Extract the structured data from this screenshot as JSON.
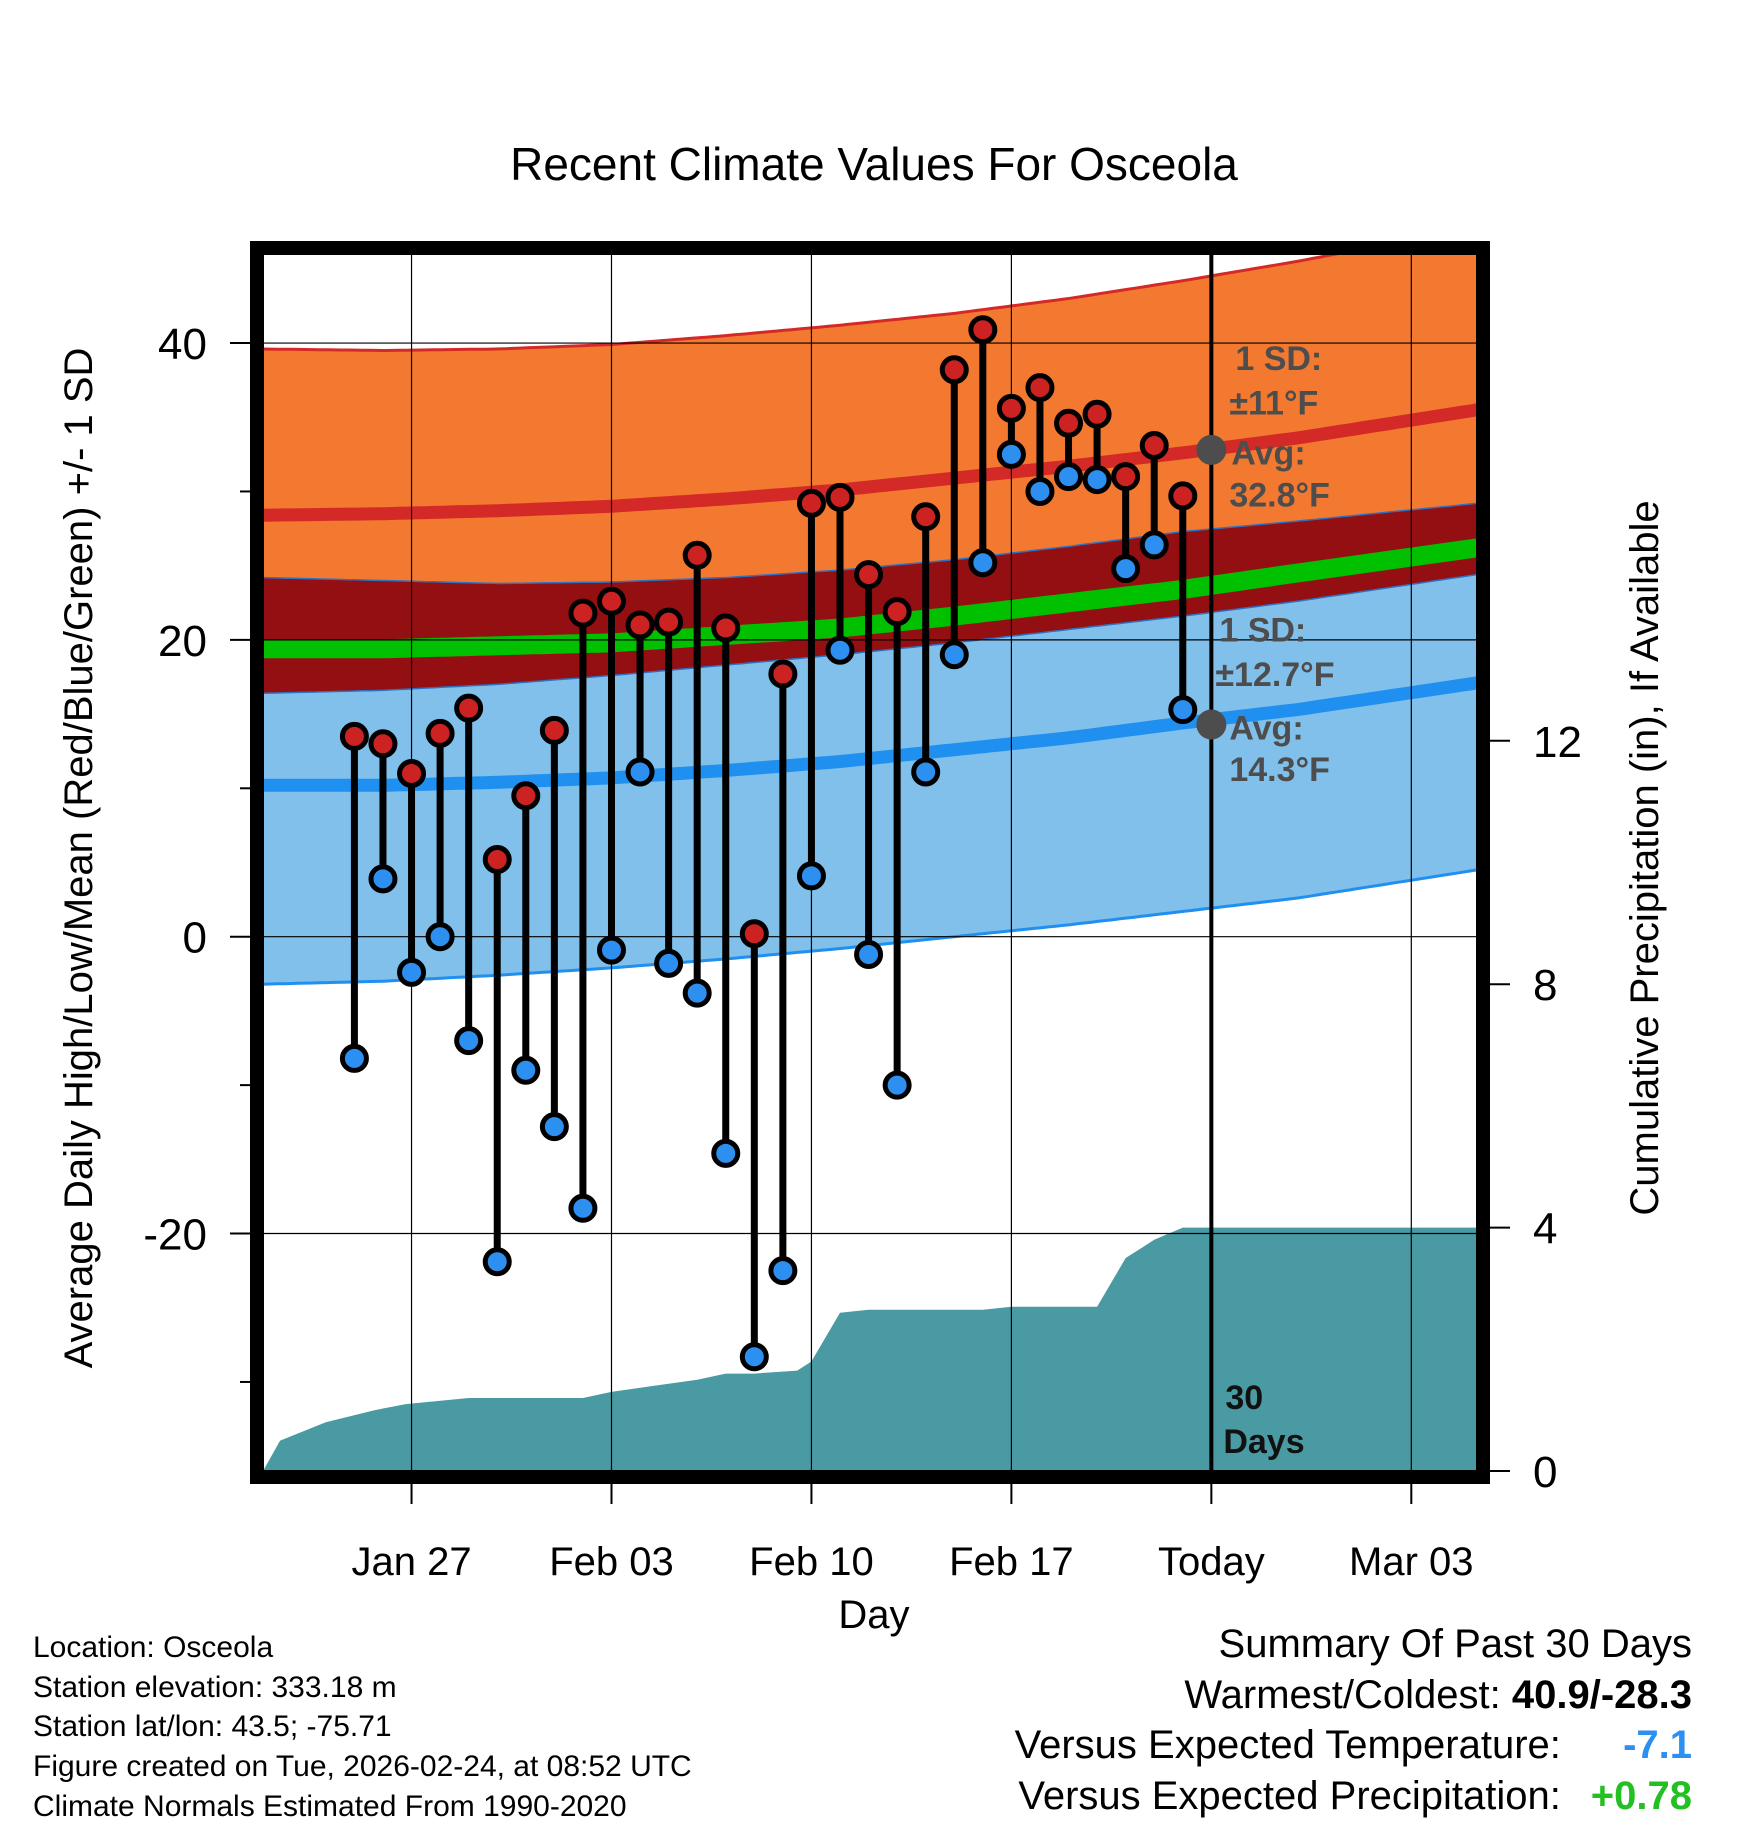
{
  "chart_data": {
    "type": "line",
    "title": "Recent Climate Values For Osceola",
    "xlabel": "Day",
    "ylabel_left": "Average Daily High/Low/Mean (Red/Blue/Green) +/- 1 SD",
    "ylabel_right": "Cumulative Precipitation (in), If Available",
    "ylim_left": [
      -36,
      46
    ],
    "yticks_left": [
      40,
      20,
      0,
      -20
    ],
    "yticks_left_minor": [
      30,
      10,
      -10,
      -30
    ],
    "ylim_right": [
      0,
      20
    ],
    "yticks_right": [
      12,
      8,
      4,
      0
    ],
    "xlim_days": [
      -33.2,
      9.3
    ],
    "x_tick_labels": [
      {
        "day": -28,
        "label": "Jan 27"
      },
      {
        "day": -21,
        "label": "Feb 03"
      },
      {
        "day": -14,
        "label": "Feb 10"
      },
      {
        "day": -7,
        "label": "Feb 17"
      },
      {
        "day": 0,
        "label": "Today"
      },
      {
        "day": 7,
        "label": "Mar 03"
      }
    ],
    "normal_curves": {
      "day": [
        -33.2,
        -29,
        -25,
        -21,
        -17,
        -13,
        -9,
        -5,
        -1,
        3,
        9.3
      ],
      "high_avg": [
        28.4,
        28.5,
        28.7,
        29.0,
        29.5,
        30.1,
        30.9,
        31.7,
        32.6,
        33.6,
        35.5
      ],
      "high_upper": [
        39.6,
        39.5,
        39.6,
        39.9,
        40.5,
        41.2,
        42.0,
        43.0,
        44.2,
        45.5,
        47.8
      ],
      "high_lower": [
        24.2,
        24.0,
        23.8,
        23.9,
        24.2,
        24.7,
        25.4,
        26.3,
        27.3,
        28.0,
        29.2
      ],
      "mean_avg": [
        19.4,
        19.4,
        19.6,
        19.8,
        20.3,
        20.8,
        21.6,
        22.5,
        23.4,
        24.5,
        26.2
      ],
      "low_avg": [
        10.2,
        10.2,
        10.4,
        10.7,
        11.2,
        11.8,
        12.6,
        13.4,
        14.4,
        15.3,
        17.1
      ],
      "low_upper": [
        16.4,
        16.6,
        17.0,
        17.6,
        18.3,
        19.0,
        19.8,
        20.7,
        21.6,
        22.6,
        24.4
      ],
      "low_lower": [
        -3.2,
        -3.0,
        -2.6,
        -2.1,
        -1.5,
        -0.8,
        0.0,
        0.8,
        1.7,
        2.6,
        4.5
      ]
    },
    "series": [
      {
        "name": "High",
        "color": "#cc2222",
        "values": [
          13.5,
          13.0,
          11.0,
          13.7,
          15.4,
          5.2,
          9.5,
          13.9,
          21.8,
          22.6,
          21.0,
          21.2,
          25.7,
          20.8,
          0.2,
          17.7,
          29.2,
          29.6,
          24.4,
          21.9,
          28.3,
          38.2,
          40.9,
          35.6,
          37.0,
          34.6,
          35.2,
          31.0,
          33.1,
          29.7
        ]
      },
      {
        "name": "Low",
        "color": "#2d8fef",
        "values": [
          -8.2,
          3.9,
          -2.4,
          0.0,
          -7.0,
          -21.9,
          -9.0,
          -12.8,
          -18.3,
          -0.9,
          11.1,
          -1.8,
          -3.8,
          -14.6,
          -28.3,
          -22.5,
          4.1,
          19.3,
          -1.2,
          -10.0,
          11.1,
          19.0,
          25.2,
          32.5,
          30.0,
          31.0,
          30.8,
          24.8,
          26.4,
          15.3
        ]
      }
    ],
    "days": [
      -30,
      -29,
      -28,
      -27,
      -26,
      -25,
      -24,
      -23,
      -22,
      -21,
      -20,
      -19,
      -18,
      -17,
      -16,
      -15,
      -14,
      -13,
      -12,
      -11,
      -10,
      -9,
      -8,
      -7,
      -6,
      -5,
      -4,
      -3,
      -2,
      -1
    ],
    "precipitation": {
      "days": [
        -33.2,
        -32.6,
        -31.0,
        -29.3,
        -28.2,
        -26.0,
        -24.5,
        -22.0,
        -21.0,
        -19.5,
        -18.0,
        -17.0,
        -16.0,
        -14.5,
        -14.0,
        -13.0,
        -12.0,
        -10.0,
        -8.0,
        -7.0,
        -6.0,
        -4.0,
        -3.0,
        -2.0,
        -1.0,
        0.0,
        9.3
      ],
      "values": [
        0.0,
        0.5,
        0.8,
        1.0,
        1.1,
        1.2,
        1.2,
        1.2,
        1.3,
        1.4,
        1.5,
        1.6,
        1.6,
        1.65,
        1.8,
        2.6,
        2.65,
        2.65,
        2.65,
        2.7,
        2.7,
        2.7,
        3.5,
        3.8,
        4.0,
        4.0,
        4.0
      ]
    },
    "annotations": {
      "high_sd_label": "1 SD:",
      "high_sd_value": "±11°F",
      "high_avg_label": "Avg:",
      "high_avg_value": "32.8°F",
      "high_avg_marker": 32.8,
      "low_sd_label": "1 SD:",
      "low_sd_value": "±12.7°F",
      "low_avg_label": "Avg:",
      "low_avg_value": "14.3°F",
      "low_avg_marker": 14.3,
      "window_count": "30",
      "window_unit": "Days"
    },
    "colors": {
      "high_band": "#f47930",
      "high_line": "#d42a27",
      "mid_band": "#940f12",
      "mean_line": "#00c000",
      "low_band": "#80c0ea",
      "low_line": "#2090f0",
      "precip": "#4a9aa3",
      "marker_gray": "#4d4d4d"
    }
  },
  "info": {
    "location": "Location: Osceola",
    "elevation": "Station elevation: 333.18 m",
    "latlon": "Station lat/lon: 43.5; -75.71",
    "created": "Figure created on Tue, 2026-02-24, at 08:52 UTC",
    "normals": "Climate Normals Estimated From 1990-2020"
  },
  "summary": {
    "title": "Summary Of Past 30 Days",
    "warm_cold_label": "Warmest/Coldest:",
    "warm_cold_value": "40.9/-28.3",
    "temp_label": "Versus Expected Temperature:",
    "temp_value": "-7.1",
    "temp_color": "#2d8fef",
    "precip_label": "Versus Expected Precipitation:",
    "precip_value": "+0.78",
    "precip_color": "#22c020"
  }
}
